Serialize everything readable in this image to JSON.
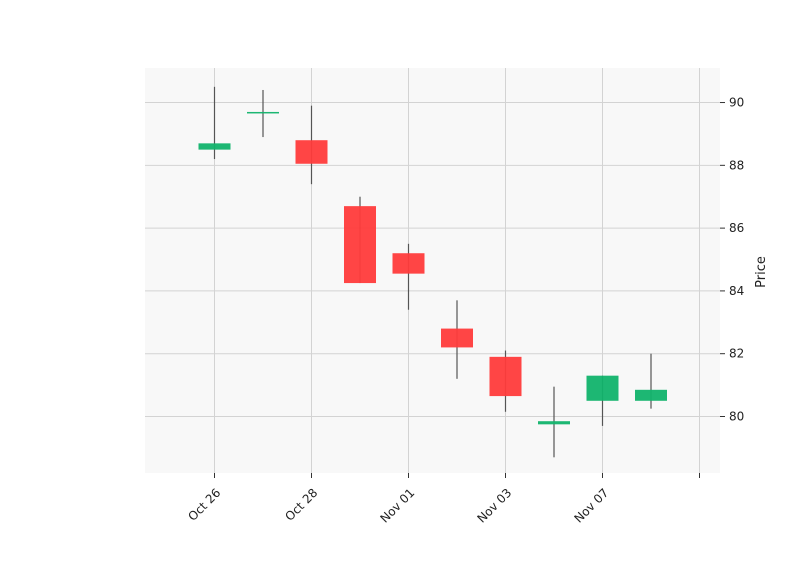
{
  "chart_data": {
    "type": "candlestick",
    "ylabel": "Price",
    "ylim": [
      78.2,
      91.1
    ],
    "yticks": [
      80,
      82,
      84,
      86,
      88,
      90
    ],
    "xtick_labels": [
      "Oct 26",
      "Oct 28",
      "Nov 01",
      "Nov 03",
      "Nov 07",
      ""
    ],
    "grid": true,
    "candles": [
      {
        "open": 88.5,
        "high": 90.5,
        "low": 88.2,
        "close": 88.7
      },
      {
        "open": 89.7,
        "high": 90.4,
        "low": 88.9,
        "close": 89.7
      },
      {
        "open": 88.8,
        "high": 89.9,
        "low": 87.4,
        "close": 88.05
      },
      {
        "open": 86.7,
        "high": 87.0,
        "low": 84.25,
        "close": 84.25
      },
      {
        "open": 85.2,
        "high": 85.5,
        "low": 83.4,
        "close": 84.55
      },
      {
        "open": 82.8,
        "high": 83.7,
        "low": 81.2,
        "close": 82.2
      },
      {
        "open": 81.9,
        "high": 82.1,
        "low": 80.15,
        "close": 80.65
      },
      {
        "open": 79.75,
        "high": 80.95,
        "low": 78.7,
        "close": 79.85
      },
      {
        "open": 80.5,
        "high": 81.3,
        "low": 79.7,
        "close": 81.3
      },
      {
        "open": 80.5,
        "high": 82.0,
        "low": 80.25,
        "close": 80.85
      }
    ],
    "colors": {
      "up": "#11b36b",
      "down": "#ff3b3b",
      "wick": "#555555",
      "plot_bg": "#f8f8f8",
      "grid": "#d3d3d3"
    }
  }
}
